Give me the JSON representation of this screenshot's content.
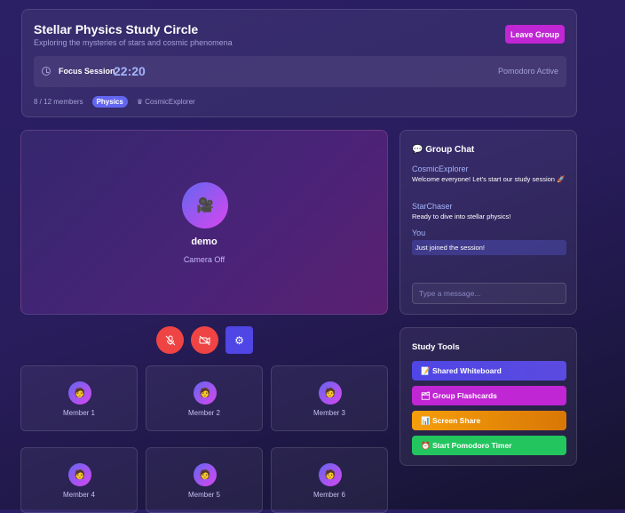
{
  "header": {
    "title": "Stellar Physics Study Circle",
    "subtitle": "Exploring the mysteries of stars and cosmic phenomena",
    "leave_label": "Leave Group",
    "focus": {
      "label": "Focus Session",
      "time": "22:20",
      "status": "Pomodoro Active"
    },
    "members": "8 / 12 members",
    "subject": "Physics",
    "host": "♛ CosmicExplorer"
  },
  "video": {
    "name": "demo",
    "status": "Camera Off",
    "avatar": "🎥"
  },
  "controls": {
    "mic": "mic-off",
    "camera": "camera-off",
    "settings": "⚙"
  },
  "members": [
    {
      "label": "Member 1"
    },
    {
      "label": "Member 2"
    },
    {
      "label": "Member 3"
    },
    {
      "label": "Member 4"
    },
    {
      "label": "Member 5"
    },
    {
      "label": "Member 6"
    }
  ],
  "chat": {
    "title": "Group Chat",
    "messages": [
      {
        "author": "CosmicExplorer",
        "text": "Welcome everyone! Let's start our study session 🚀"
      },
      {
        "author": "StarChaser",
        "text": "Ready to dive into stellar physics!"
      },
      {
        "author": "You",
        "text": "Just joined the session!"
      }
    ],
    "placeholder": "Type a message..."
  },
  "tools": {
    "title": "Study Tools",
    "items": [
      {
        "label": "📝 Shared Whiteboard",
        "color": "#4f46e5"
      },
      {
        "label": "🗂 Group Flashcards",
        "color": "#c026d3"
      },
      {
        "label": "📊 Screen Share",
        "color": "#f59e0b"
      },
      {
        "label": "⏰ Start Pomodoro Timer",
        "color": "#22c55e"
      }
    ]
  }
}
